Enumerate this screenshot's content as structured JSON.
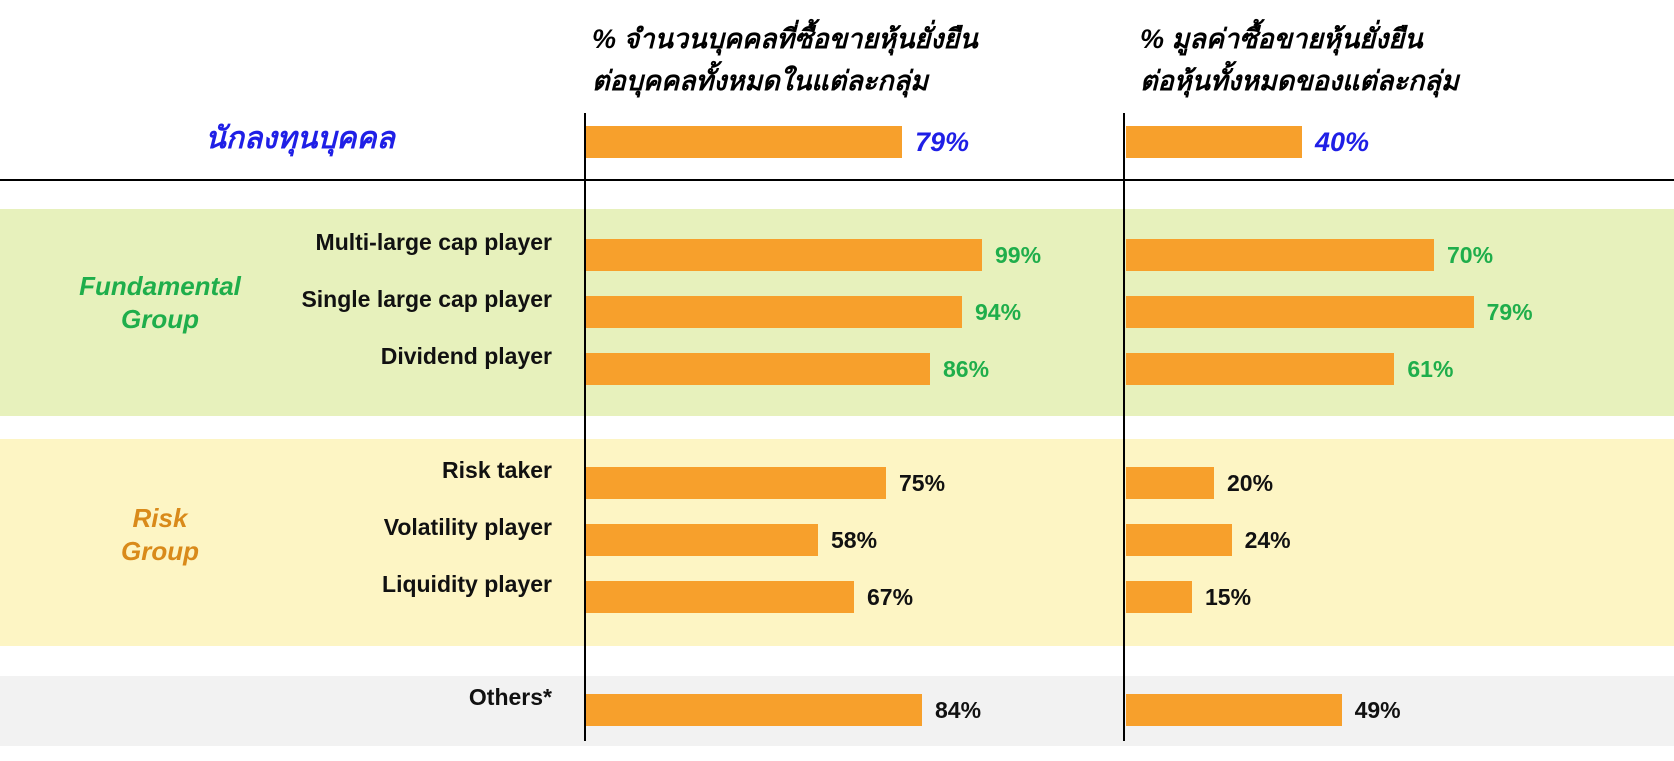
{
  "colors": {
    "bar": "#f7a02c",
    "investor_text": "#1f1fe6",
    "fundamental_text": "#1fae4b",
    "fundamental_band": "#e7f1bc",
    "risk_text": "#d98a1a",
    "risk_band": "#fdf5c4",
    "others_band": "#f2f2f2",
    "default_text": "#111111"
  },
  "chart_data": {
    "type": "bar",
    "orientation": "horizontal",
    "title": "",
    "series": [
      {
        "name": "% จำนวนบุคคลที่ซื้อขายหุ้นยั่งยืน ต่อบุคคลทั้งหมดในแต่ละกลุ่ม",
        "header_lines": [
          "% จำนวนบุคคลที่ซื้อขายหุ้นยั่งยืน",
          "ต่อบุคคลทั้งหมดในแต่ละกลุ่ม"
        ],
        "values": [
          79,
          99,
          94,
          86,
          75,
          58,
          67,
          84
        ],
        "labels": [
          "79%",
          "99%",
          "94%",
          "86%",
          "75%",
          "58%",
          "67%",
          "84%"
        ]
      },
      {
        "name": "% มูลค่าซื้อขายหุ้นยั่งยืน ต่อหุ้นทั้งหมดของแต่ละกลุ่ม",
        "header_lines": [
          "% มูลค่าซื้อขายหุ้นยั่งยืน",
          "ต่อหุ้นทั้งหมดของแต่ละกลุ่ม"
        ],
        "values": [
          40,
          70,
          79,
          61,
          20,
          24,
          15,
          49
        ],
        "labels": [
          "40%",
          "70%",
          "79%",
          "61%",
          "20%",
          "24%",
          "15%",
          "49%"
        ]
      }
    ],
    "categories": [
      "นักลงทุนบุคคล",
      "Multi-large cap player",
      "Single large cap player",
      "Dividend player",
      "Risk taker",
      "Volatility player",
      "Liquidity player",
      "Others*"
    ],
    "category_groups": [
      "investor",
      "fundamental",
      "fundamental",
      "fundamental",
      "risk",
      "risk",
      "risk",
      "others"
    ],
    "groups": [
      {
        "key": "fundamental",
        "lines": [
          "Fundamental",
          "Group"
        ]
      },
      {
        "key": "risk",
        "lines": [
          "Risk",
          "Group"
        ]
      }
    ],
    "xlim": [
      0,
      100
    ],
    "grid": false,
    "legend": "none"
  }
}
